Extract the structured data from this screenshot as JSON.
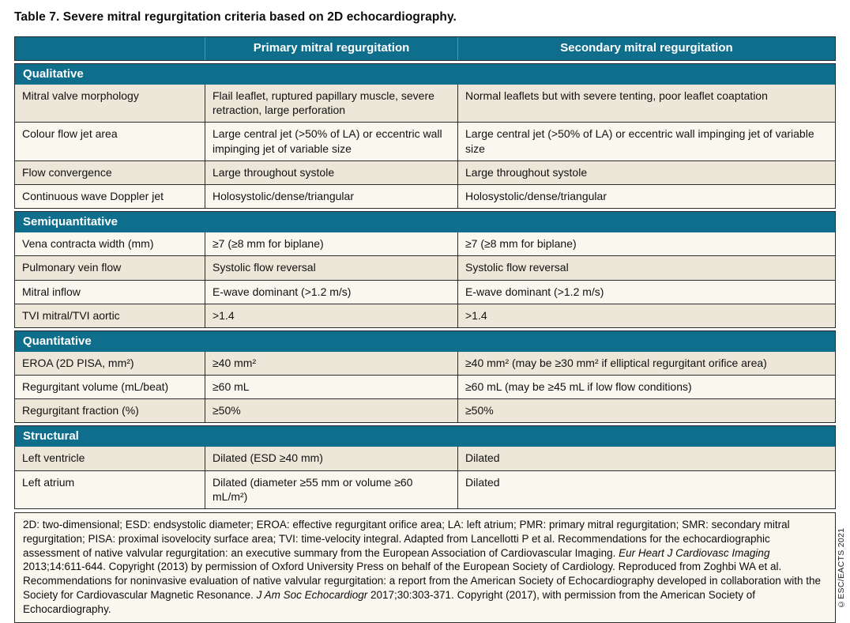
{
  "page": {
    "title": "Table 7. Severe mitral regurgitation criteria based on 2D echocardiography.",
    "copyright_vertical": "©ESC/EACTS 2021"
  },
  "colors": {
    "teal": "#0e6e8c",
    "row_dark": "#ece7d8",
    "row_light": "#f9f7ee",
    "border": "#2b2b2b"
  },
  "table": {
    "columns": [
      "",
      "Primary mitral regurgitation",
      "Secondary mitral regurgitation"
    ],
    "sections": [
      {
        "header": "Qualitative",
        "rows": [
          {
            "label": "Mitral valve morphology",
            "primary": "Flail leaflet, ruptured papillary muscle, severe retraction, large perforation",
            "secondary": "Normal leaflets but with severe tenting, poor leaflet coaptation",
            "tone": "dark"
          },
          {
            "label": "Colour flow jet area",
            "primary": "Large central jet (>50% of LA) or eccentric wall impinging jet of variable size",
            "secondary": "Large central jet (>50% of LA) or eccentric wall impinging jet of variable size",
            "tone": "light"
          },
          {
            "label": "Flow convergence",
            "primary": "Large throughout systole",
            "secondary": "Large throughout systole",
            "tone": "dark"
          },
          {
            "label": "Continuous wave Doppler jet",
            "primary": "Holosystolic/dense/triangular",
            "secondary": "Holosystolic/dense/triangular",
            "tone": "light"
          }
        ]
      },
      {
        "header": "Semiquantitative",
        "rows": [
          {
            "label": "Vena contracta width (mm)",
            "primary": "≥7 (≥8 mm for biplane)",
            "secondary": "≥7 (≥8 mm for biplane)",
            "tone": "light"
          },
          {
            "label": "Pulmonary vein flow",
            "primary": "Systolic flow reversal",
            "secondary": "Systolic flow reversal",
            "tone": "dark"
          },
          {
            "label": "Mitral inflow",
            "primary": "E-wave dominant (>1.2 m/s)",
            "secondary": "E-wave dominant (>1.2 m/s)",
            "tone": "light"
          },
          {
            "label": "TVI mitral/TVI aortic",
            "primary": ">1.4",
            "secondary": ">1.4",
            "tone": "dark"
          }
        ]
      },
      {
        "header": "Quantitative",
        "rows": [
          {
            "label": "EROA (2D PISA, mm²)",
            "primary": "≥40 mm²",
            "secondary": "≥40 mm² (may be ≥30 mm² if elliptical regurgitant orifice area)",
            "tone": "dark"
          },
          {
            "label": "Regurgitant volume (mL/beat)",
            "primary": "≥60 mL",
            "secondary": "≥60 mL (may be ≥45 mL if low flow conditions)",
            "tone": "light"
          },
          {
            "label": "Regurgitant fraction (%)",
            "primary": "≥50%",
            "secondary": "≥50%",
            "tone": "dark"
          }
        ]
      },
      {
        "header": "Structural",
        "rows": [
          {
            "label": "Left ventricle",
            "primary": "Dilated (ESD ≥40 mm)",
            "secondary": "Dilated",
            "tone": "dark"
          },
          {
            "label": "Left atrium",
            "primary": "Dilated (diameter ≥55 mm or volume ≥60 mL/m²)",
            "secondary": "Dilated",
            "tone": "light"
          }
        ]
      }
    ]
  },
  "footnote": {
    "parts": [
      {
        "text": "2D: two-dimensional; ESD: endsystolic diameter; EROA: effective regurgitant orifice area; LA: left atrium; PMR: primary mitral regurgitation; SMR: secondary mitral regurgitation; PISA: proximal isovelocity surface area; TVI: time-velocity integral. Adapted from Lancellotti P et al. Recommendations for the echocardiographic assessment of native valvular regurgitation: an executive summary from the European Association of Cardiovascular Imaging. ",
        "italic": false
      },
      {
        "text": "Eur Heart J Cardiovasc Imaging",
        "italic": true
      },
      {
        "text": " 2013;14:611-644. Copyright (2013) by permission of Oxford University Press on behalf of the European Society of Cardiology. Reproduced from Zoghbi WA et al. Recommendations for noninvasive evaluation of native valvular regurgitation: a report from the American Society of Echocardiography developed in collaboration with the Society for Cardiovascular Magnetic Resonance. ",
        "italic": false
      },
      {
        "text": "J Am Soc Echocardiogr",
        "italic": true
      },
      {
        "text": " 2017;30:303-371. Copyright (2017), with permission from the American Society of Echocardiography.",
        "italic": false
      }
    ]
  }
}
